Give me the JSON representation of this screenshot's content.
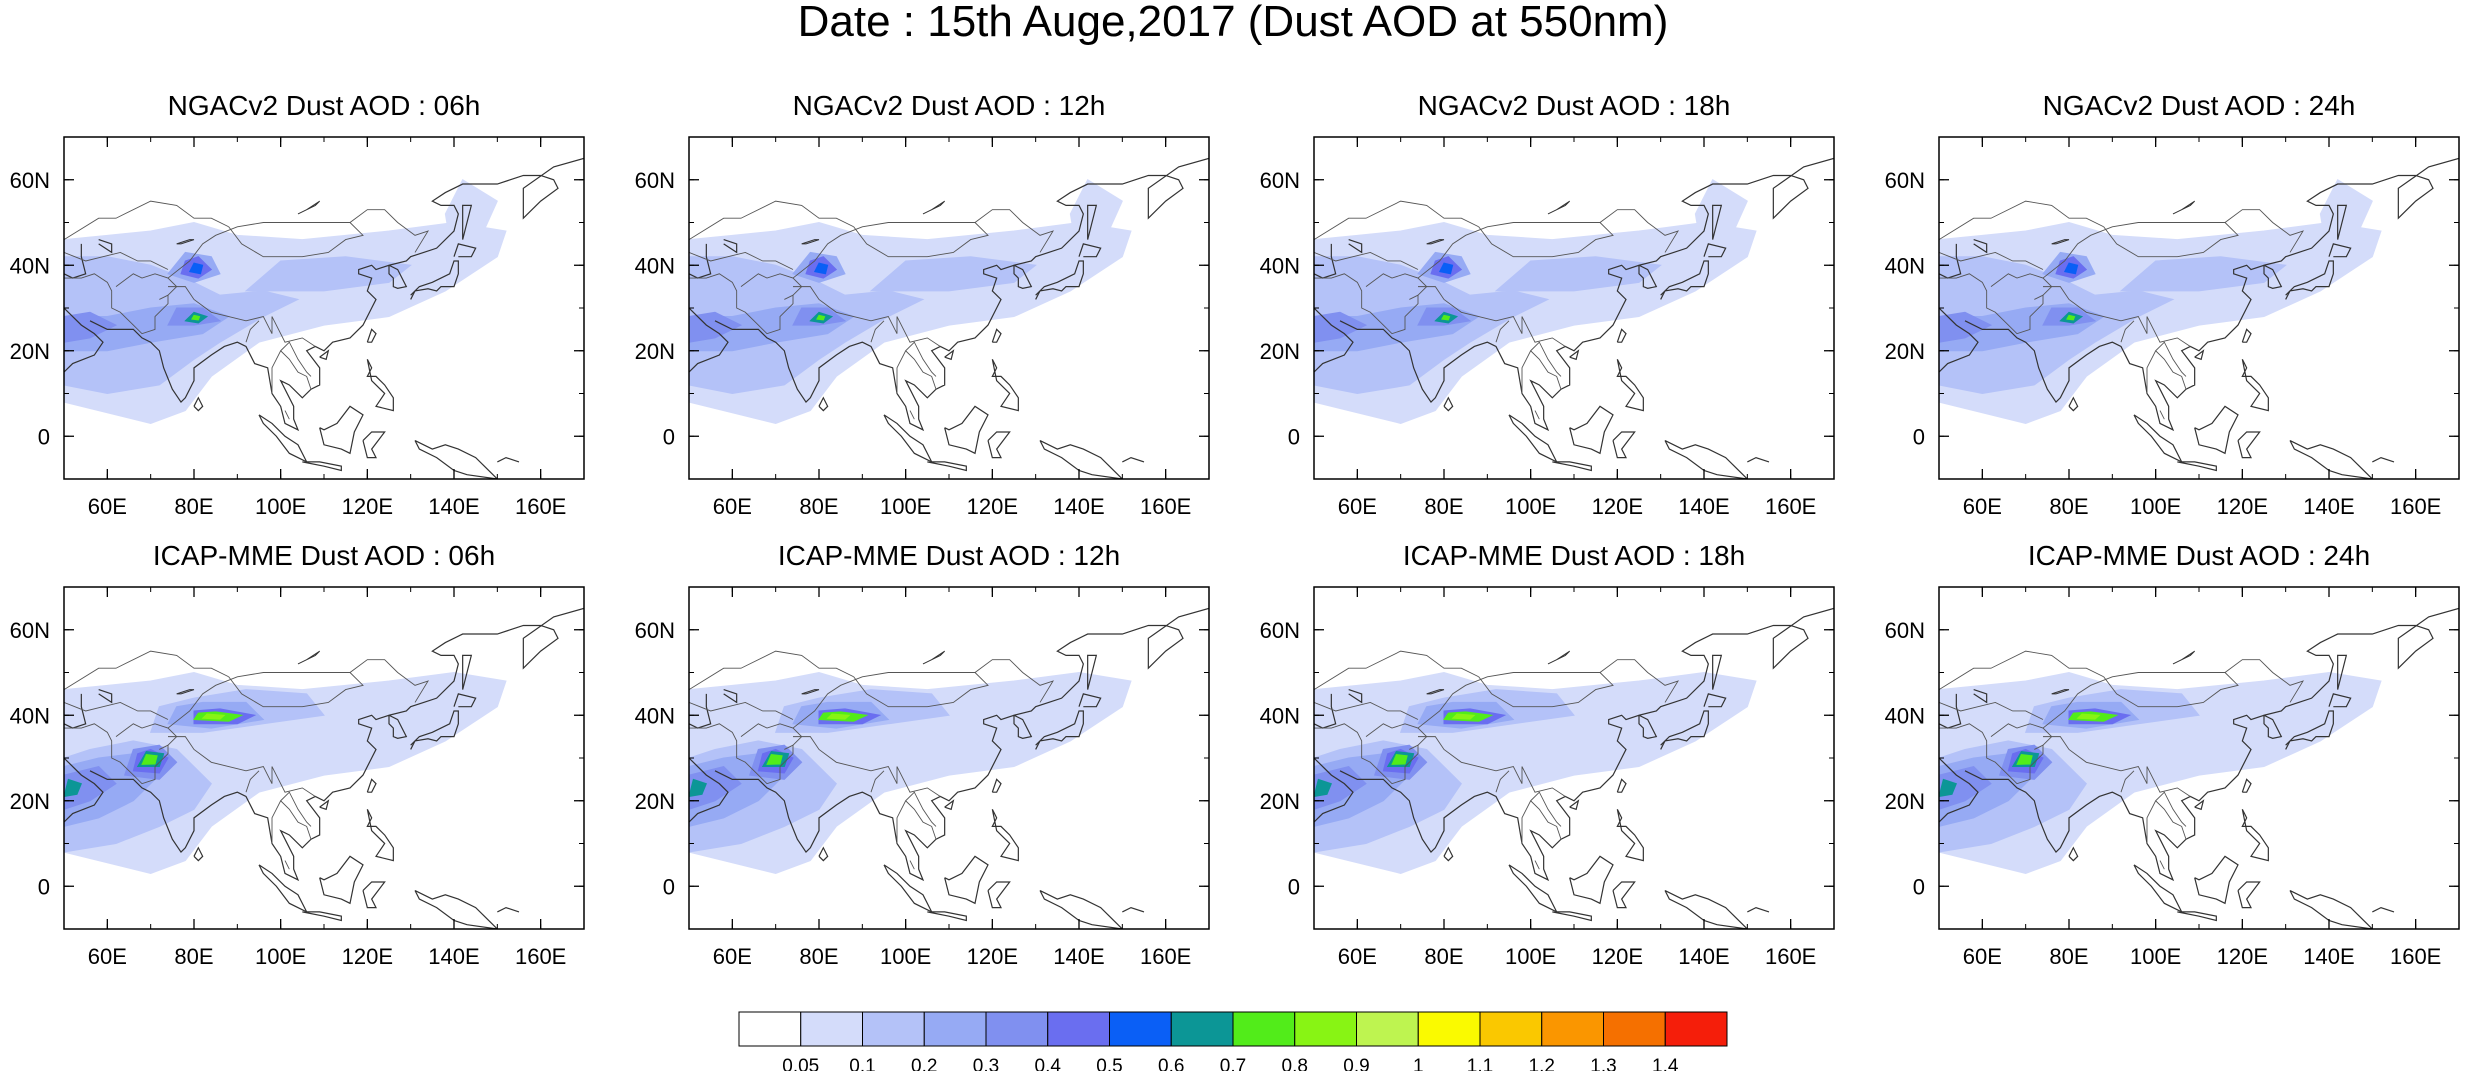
{
  "figure_title": "Date : 15th Auge,2017 (Dust AOD at 550nm)",
  "panels": [
    {
      "title": "NGACv2 Dust AOD : 06h",
      "model": "NGACv2",
      "lead": "06h"
    },
    {
      "title": "NGACv2 Dust AOD : 12h",
      "model": "NGACv2",
      "lead": "12h"
    },
    {
      "title": "NGACv2 Dust AOD : 18h",
      "model": "NGACv2",
      "lead": "18h"
    },
    {
      "title": "NGACv2 Dust AOD : 24h",
      "model": "NGACv2",
      "lead": "24h"
    },
    {
      "title": "ICAP-MME Dust AOD : 06h",
      "model": "ICAP-MME",
      "lead": "06h"
    },
    {
      "title": "ICAP-MME Dust AOD : 12h",
      "model": "ICAP-MME",
      "lead": "12h"
    },
    {
      "title": "ICAP-MME Dust AOD : 18h",
      "model": "ICAP-MME",
      "lead": "18h"
    },
    {
      "title": "ICAP-MME Dust AOD : 24h",
      "model": "ICAP-MME",
      "lead": "24h"
    }
  ],
  "map": {
    "lon_range": [
      50,
      170
    ],
    "lat_range": [
      -10,
      70
    ],
    "lon_ticks": [
      60,
      80,
      100,
      120,
      140,
      160
    ],
    "lon_tick_labels": [
      "60E",
      "80E",
      "100E",
      "120E",
      "140E",
      "160E"
    ],
    "lat_ticks": [
      60,
      40,
      20,
      0
    ],
    "lat_tick_labels": [
      "60N",
      "40N",
      "20N",
      "0"
    ]
  },
  "colorbar": {
    "labels": [
      "0.05",
      "0.1",
      "0.2",
      "0.3",
      "0.4",
      "0.5",
      "0.6",
      "0.7",
      "0.8",
      "0.9",
      "1",
      "1.1",
      "1.2",
      "1.3",
      "1.4"
    ],
    "colors": [
      "#ffffff",
      "#d4dcfa",
      "#b4c2f8",
      "#96aaf4",
      "#8090f0",
      "#6a6ef0",
      "#0a5ff6",
      "#0c9696",
      "#52ec1a",
      "#88f414",
      "#bef450",
      "#fafa00",
      "#fac800",
      "#fa9600",
      "#f57000",
      "#f51e0a"
    ]
  }
}
